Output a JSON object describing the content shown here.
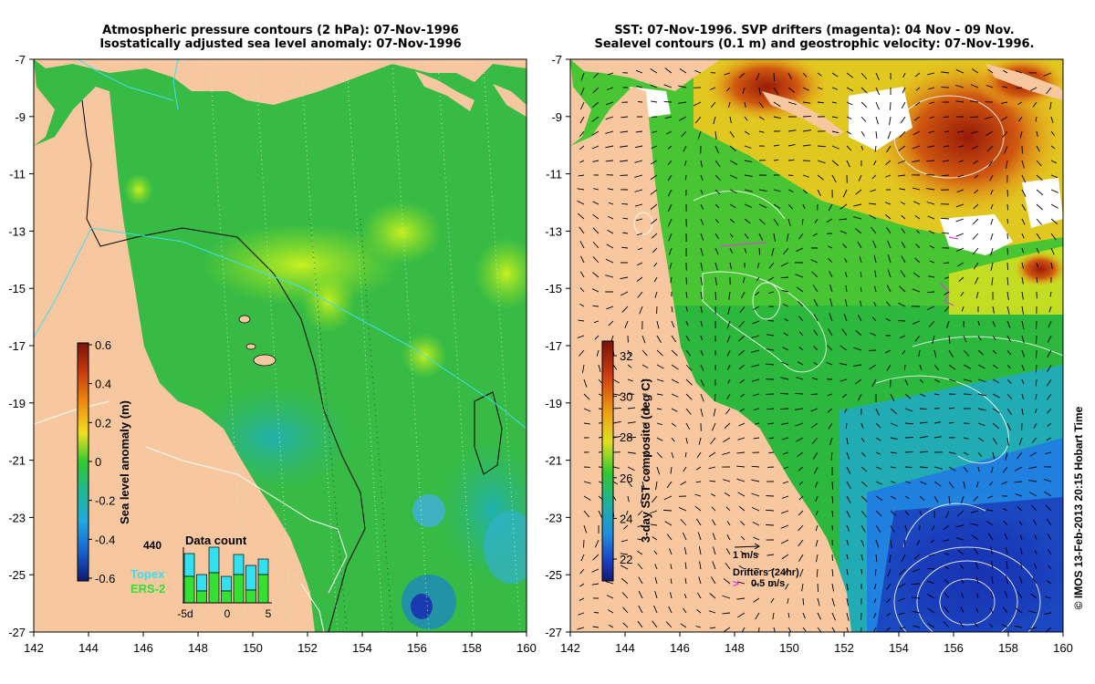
{
  "left_panel": {
    "title_line1": "Atmospheric pressure contours (2 hPa): 07-Nov-1996",
    "title_line2": "Isostatically adjusted sea level anomaly: 07-Nov-1996",
    "colorbar_label": "Sea level anomaly (m)",
    "colorbar_ticks": [
      "0.6",
      "0.4",
      "0.2",
      "0",
      "-0.2",
      "-0.4",
      "-0.6"
    ],
    "inset": {
      "title": "Data count",
      "count": "440",
      "x_ticks": [
        "-5d",
        "0",
        "5"
      ],
      "series": [
        {
          "name": "Topex",
          "color": "#33e0f0"
        },
        {
          "name": "ERS-2",
          "color": "#33e033"
        }
      ]
    }
  },
  "right_panel": {
    "title_line1": "SST: 07-Nov-1996. SVP drifters (magenta): 04 Nov - 09 Nov.",
    "title_line2": "Sealevel contours (0.1 m) and geostrophic velocity: 07-Nov-1996.",
    "colorbar_label": "3-day SST composite (deg C)",
    "colorbar_ticks": [
      "32",
      "30",
      "28",
      "26",
      "24",
      "22"
    ],
    "velocity_key": "1 m/s",
    "drifter_key_title": "Drifters (24hr)",
    "drifter_key_value": "0.5 m/s",
    "drifter_color": "#e040e0"
  },
  "axes": {
    "x_ticks": [
      "142",
      "144",
      "146",
      "148",
      "150",
      "152",
      "154",
      "156",
      "158",
      "160"
    ],
    "y_ticks": [
      "-7",
      "-9",
      "-11",
      "-13",
      "-15",
      "-17",
      "-19",
      "-21",
      "-23",
      "-25",
      "-27"
    ]
  },
  "credit": "© IMOS 13-Feb-2013 20:15 Hobart Time",
  "colors": {
    "land": "#f7c8a0",
    "ssa_base": "#2fc03a",
    "sst_warm": "#c0301a",
    "sst_cool": "#1a3fb0"
  }
}
